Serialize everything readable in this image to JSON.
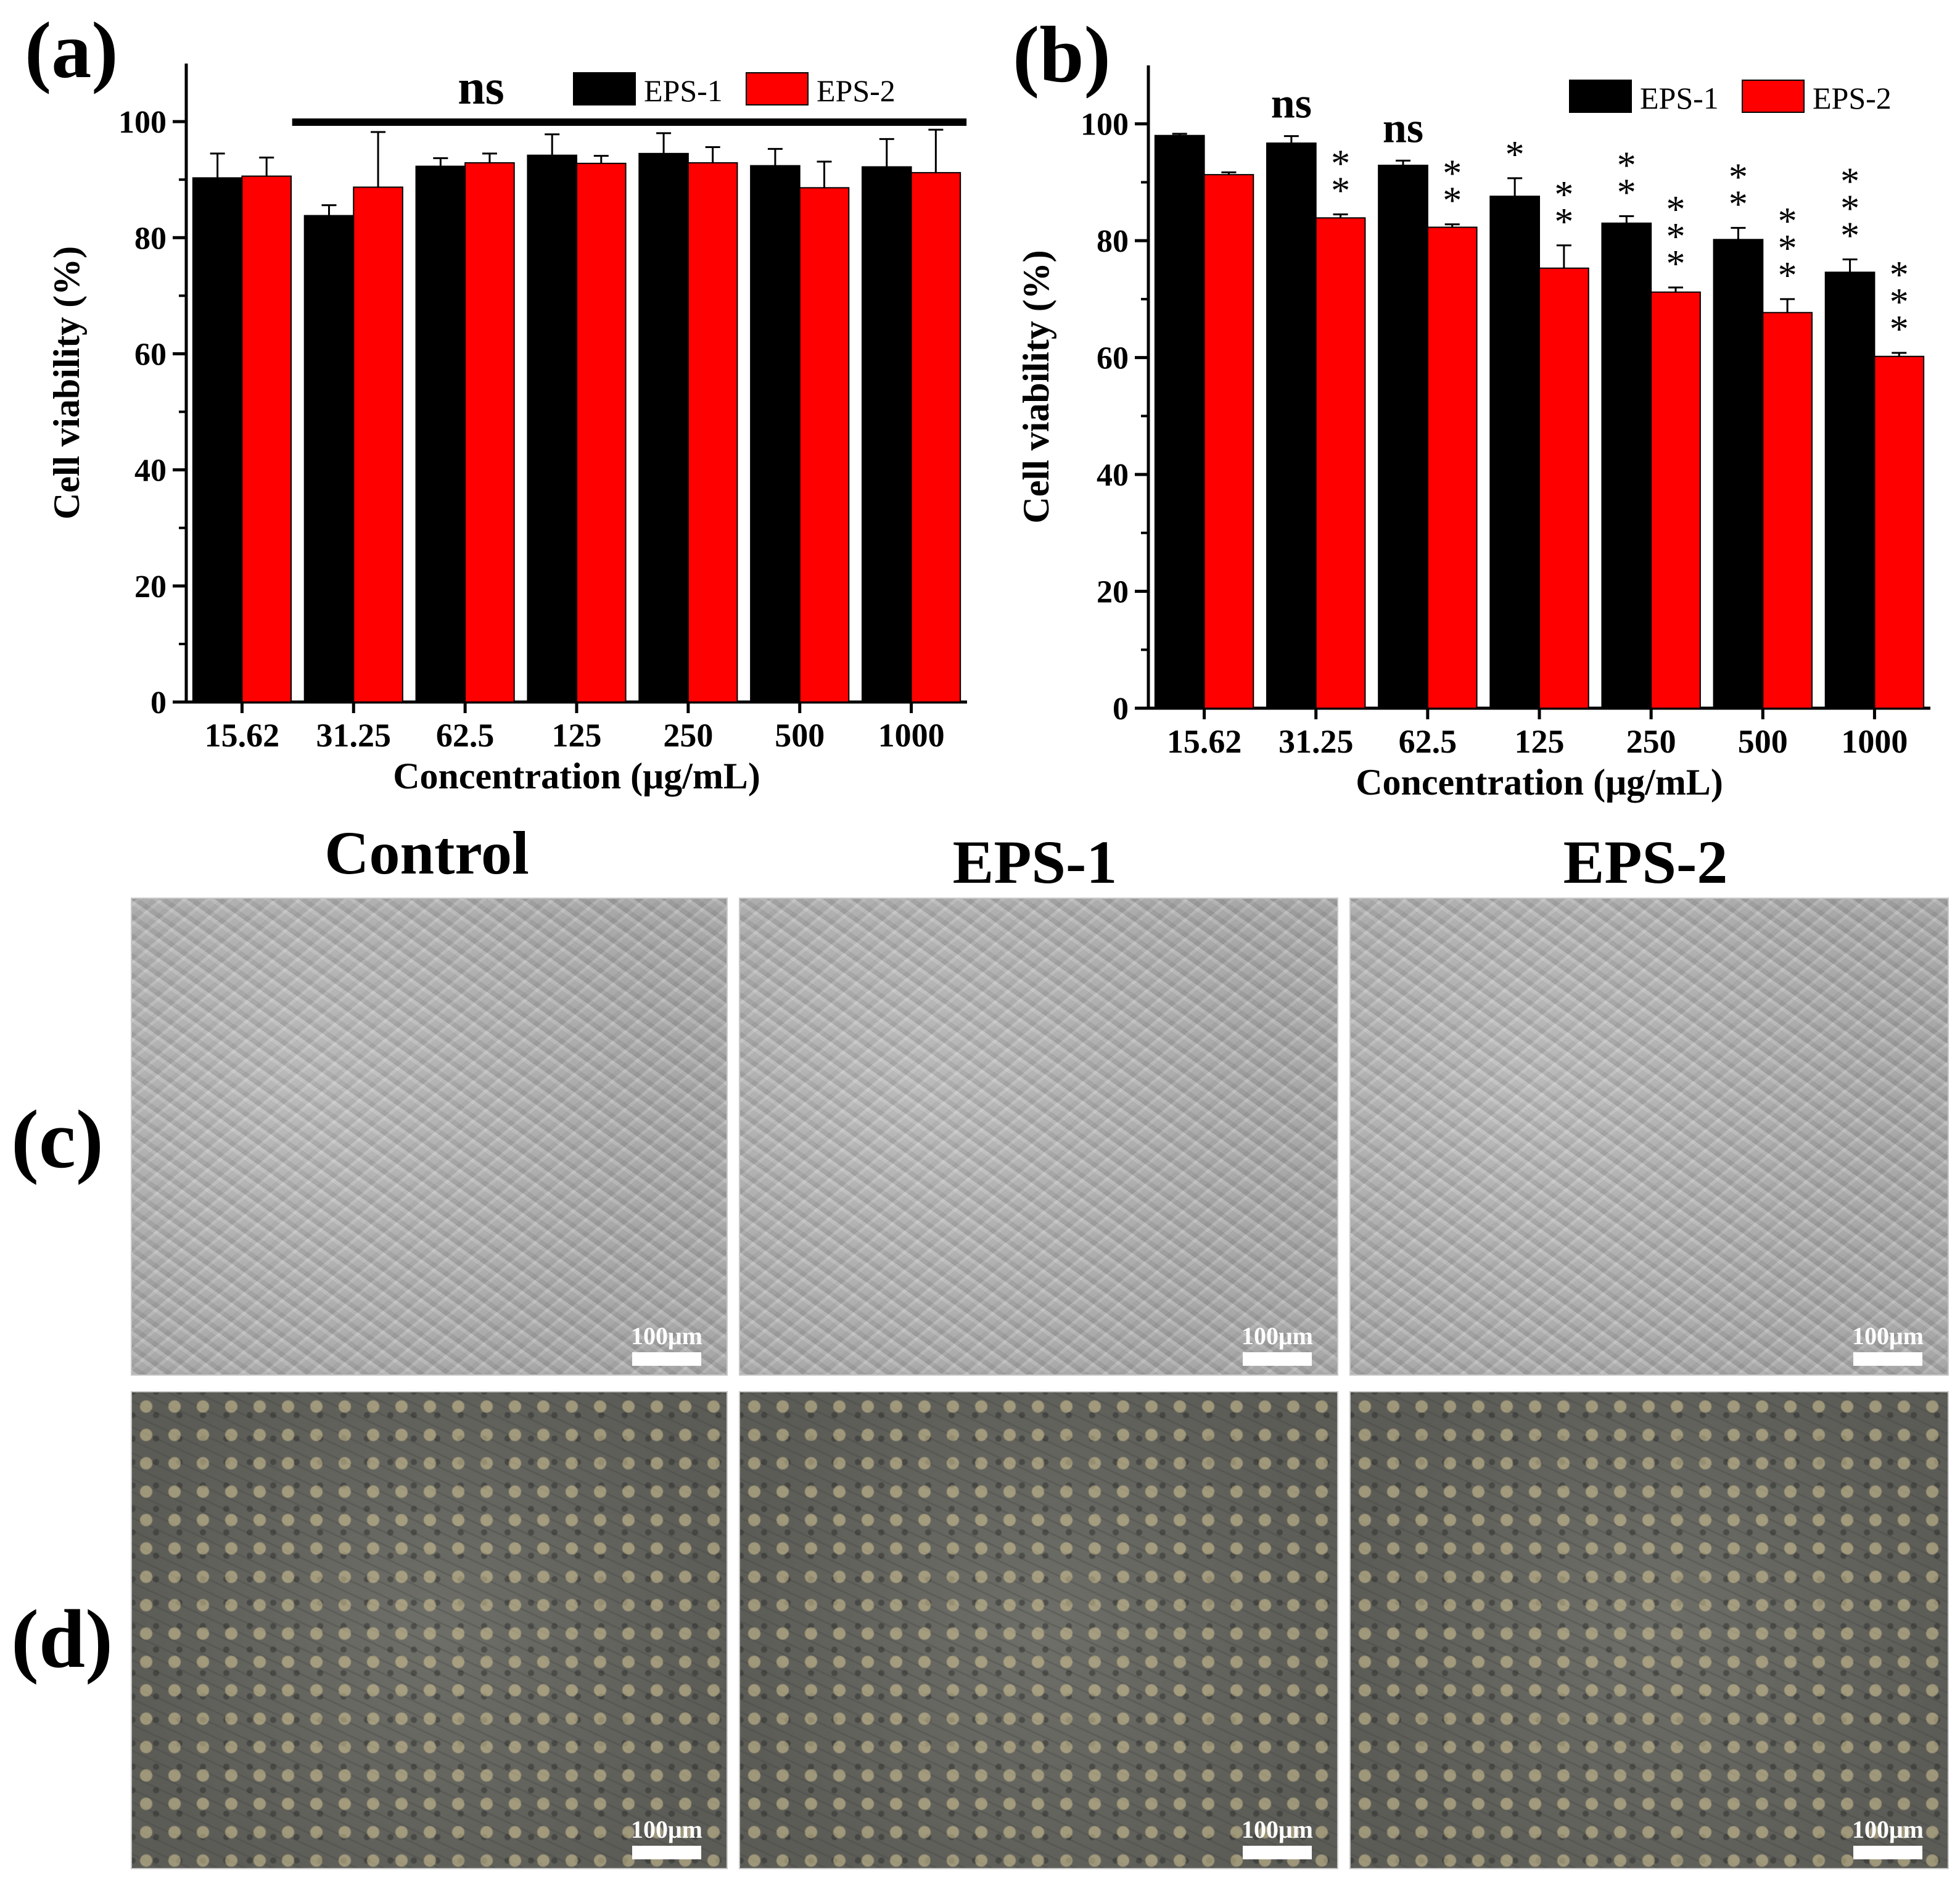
{
  "charts": {
    "a": {
      "panel_label": "(a)",
      "ylabel": "Cell viability (%)",
      "xlabel": "Concentration (μg/mL)",
      "yticks": [
        "0",
        "20",
        "40",
        "60",
        "80",
        "100"
      ],
      "ns_label": "ns",
      "legend": [
        {
          "name": "EPS-1",
          "color": "#000000"
        },
        {
          "name": "EPS-2",
          "color": "#ff0000"
        }
      ]
    },
    "b": {
      "panel_label": "(b)",
      "ylabel": "Cell viability (%)",
      "xlabel": "Concentration (μg/mL)",
      "yticks": [
        "0",
        "20",
        "40",
        "60",
        "80",
        "100"
      ],
      "ns_label": "ns",
      "legend": [
        {
          "name": "EPS-1",
          "color": "#000000"
        },
        {
          "name": "EPS-2",
          "color": "#ff0000"
        }
      ]
    }
  },
  "chart_data": [
    {
      "type": "bar",
      "categories": [
        "15.62",
        "31.25",
        "62.5",
        "125",
        "250",
        "500",
        "1000"
      ],
      "ylim": [
        0,
        110
      ],
      "xlabel": "Concentration (μg/mL)",
      "ylabel": "Cell viability (%)",
      "legend_position": "top-right",
      "series": [
        {
          "name": "EPS-1",
          "color": "#000000",
          "values": [
            90.3,
            83.8,
            92.3,
            94.2,
            94.5,
            92.4,
            92.2
          ],
          "errors": [
            4.2,
            1.8,
            1.4,
            3.6,
            3.5,
            2.9,
            4.8
          ]
        },
        {
          "name": "EPS-2",
          "color": "#ff0000",
          "values": [
            90.6,
            88.7,
            92.9,
            92.8,
            92.9,
            88.6,
            91.2
          ],
          "errors": [
            3.2,
            9.5,
            1.6,
            1.3,
            2.7,
            4.5,
            7.4
          ]
        }
      ],
      "annotations": [
        {
          "text": "ns",
          "span": [
            "31.25",
            "1000"
          ]
        }
      ]
    },
    {
      "type": "bar",
      "categories": [
        "15.62",
        "31.25",
        "62.5",
        "125",
        "250",
        "500",
        "1000"
      ],
      "ylim": [
        0,
        110
      ],
      "xlabel": "Concentration (μg/mL)",
      "ylabel": "Cell viability (%)",
      "legend_position": "top-right",
      "series": [
        {
          "name": "EPS-1",
          "color": "#000000",
          "values": [
            98.0,
            96.7,
            92.9,
            87.6,
            83.0,
            80.2,
            74.6
          ],
          "errors": [
            0.3,
            1.2,
            0.8,
            3.1,
            1.2,
            2.0,
            2.2
          ],
          "marks": [
            "",
            "ns",
            "ns",
            "*",
            "**",
            "**",
            "***"
          ]
        },
        {
          "name": "EPS-2",
          "color": "#ff0000",
          "values": [
            91.3,
            83.9,
            82.3,
            75.3,
            71.2,
            67.7,
            60.2
          ],
          "errors": [
            0.4,
            0.6,
            0.5,
            3.9,
            0.8,
            2.3,
            0.6
          ],
          "marks": [
            "",
            "**",
            "**",
            "**",
            "***",
            "***",
            "***"
          ]
        }
      ]
    }
  ],
  "micrographs": {
    "columns": [
      "Control",
      "EPS-1",
      "EPS-2"
    ],
    "rows": [
      "(c)",
      "(d)"
    ],
    "scale_label": "100μm"
  }
}
